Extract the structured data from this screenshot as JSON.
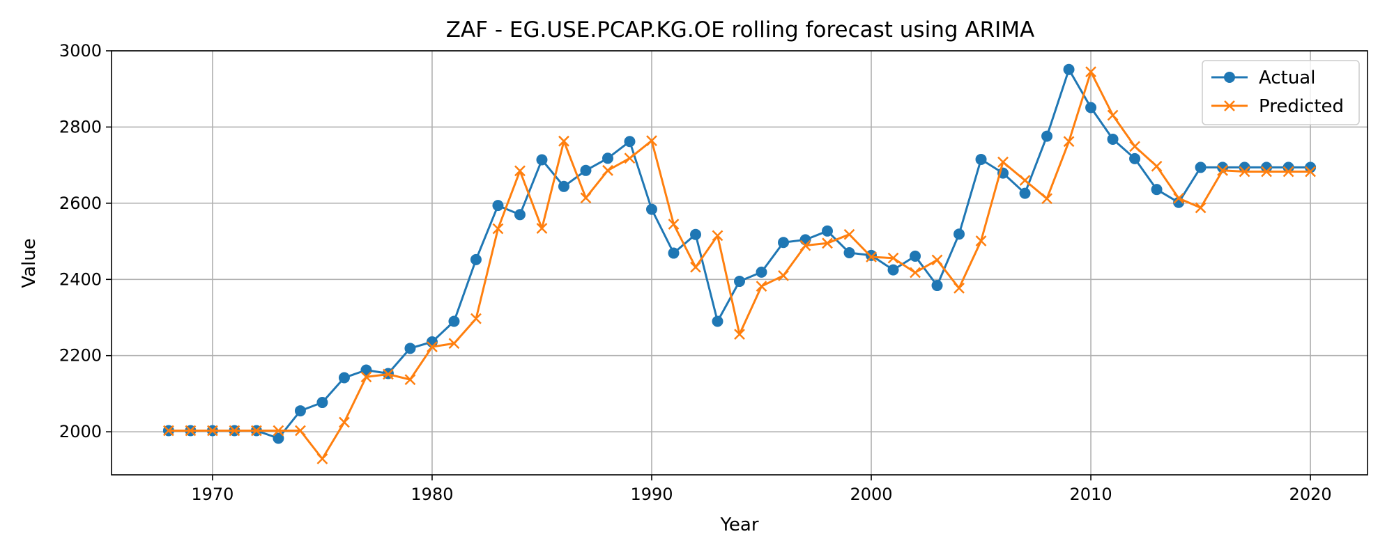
{
  "chart_data": {
    "type": "line",
    "title": "ZAF - EG.USE.PCAP.KG.OE rolling forecast using ARIMA",
    "xlabel": "Year",
    "ylabel": "Value",
    "xlim": [
      1965.4,
      2022.6
    ],
    "ylim": [
      1887,
      3000
    ],
    "xticks": [
      1970,
      1980,
      1990,
      2000,
      2010,
      2020
    ],
    "yticks": [
      2000,
      2200,
      2400,
      2600,
      2800,
      3000
    ],
    "grid": true,
    "legend_position": "top-right",
    "x": [
      1968,
      1969,
      1970,
      1971,
      1972,
      1973,
      1974,
      1975,
      1976,
      1977,
      1978,
      1979,
      1980,
      1981,
      1982,
      1983,
      1984,
      1985,
      1986,
      1987,
      1988,
      1989,
      1990,
      1991,
      1992,
      1993,
      1994,
      1995,
      1996,
      1997,
      1998,
      1999,
      2000,
      2001,
      2002,
      2003,
      2004,
      2005,
      2006,
      2007,
      2008,
      2009,
      2010,
      2011,
      2012,
      2013,
      2014,
      2015,
      2016,
      2017,
      2018,
      2019,
      2020
    ],
    "series": [
      {
        "name": "Actual",
        "color": "#1f77b4",
        "marker": "circle",
        "values": [
          2003,
          2003,
          2003,
          2003,
          2003,
          1983,
          2055,
          2077,
          2142,
          2162,
          2153,
          2219,
          2236,
          2290,
          2452,
          2594,
          2570,
          2714,
          2644,
          2686,
          2718,
          2762,
          2584,
          2469,
          2518,
          2290,
          2395,
          2419,
          2497,
          2504,
          2527,
          2470,
          2463,
          2425,
          2461,
          2384,
          2519,
          2715,
          2679,
          2626,
          2776,
          2951,
          2851,
          2768,
          2717,
          2636,
          2602,
          2694,
          2694,
          2694,
          2694,
          2694,
          2694
        ]
      },
      {
        "name": "Predicted",
        "color": "#ff7f0e",
        "marker": "x",
        "values": [
          2003,
          2003,
          2003,
          2003,
          2003,
          2003,
          2003,
          1929,
          2025,
          2144,
          2151,
          2137,
          2223,
          2232,
          2297,
          2533,
          2685,
          2534,
          2763,
          2614,
          2686,
          2718,
          2764,
          2545,
          2432,
          2515,
          2256,
          2382,
          2410,
          2489,
          2495,
          2518,
          2459,
          2456,
          2418,
          2451,
          2377,
          2501,
          2708,
          2660,
          2612,
          2762,
          2945,
          2831,
          2749,
          2697,
          2613,
          2588,
          2686,
          2683,
          2683,
          2683,
          2683
        ]
      }
    ]
  }
}
